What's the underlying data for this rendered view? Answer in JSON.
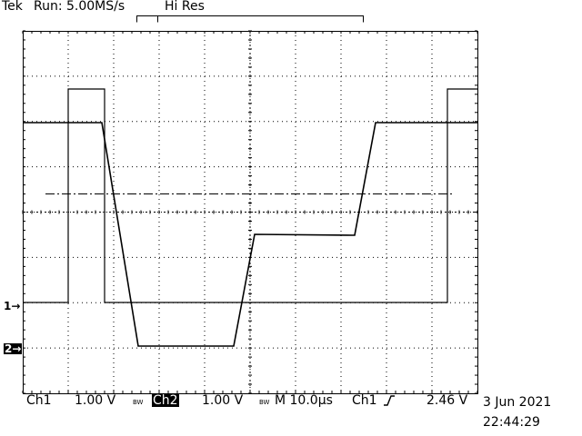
{
  "header": {
    "brand": "Tek",
    "status": "Run: 5.00MS/s",
    "mode": "Hi Res"
  },
  "trace_markers": {
    "ch1": "1→",
    "ch2": "2→"
  },
  "settings": {
    "ch1_label": "Ch1",
    "ch1_scale": "1.00 V",
    "bw_limit": "BW",
    "ch2_label": "Ch2",
    "ch2_scale": "1.00 V",
    "timebase": "M 10.0µs",
    "trigger_source": "Ch1",
    "trigger_slope_icon": "rising-edge-icon",
    "trigger_level": "2.46 V"
  },
  "timestamp": {
    "date": "3 Jun 2021",
    "time": "22:44:29"
  },
  "colors": {
    "background": "#ffffff",
    "trace": "#000000",
    "grid": "#000000"
  }
}
